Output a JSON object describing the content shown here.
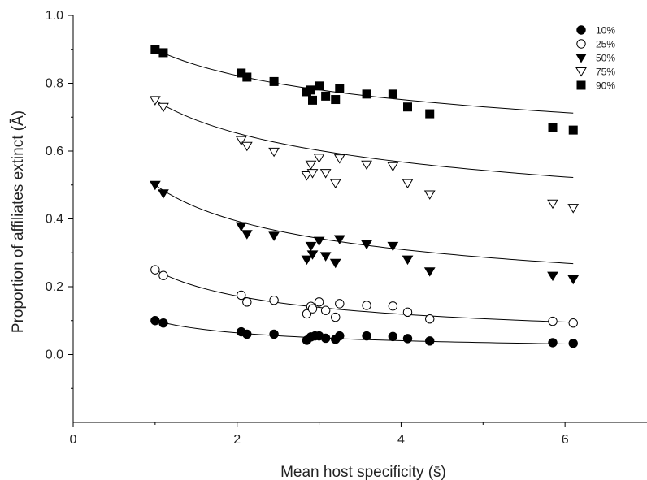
{
  "chart_data": {
    "type": "scatter",
    "xlabel": "Mean host specificity (s̄)",
    "ylabel": "Proportion of affiliates extinct (Ā)",
    "xlim": [
      0,
      7
    ],
    "ylim": [
      -0.2,
      1.0
    ],
    "xticks": [
      "0",
      "2",
      "4",
      "6"
    ],
    "yticks": [
      "0.0",
      "0.2",
      "0.4",
      "0.6",
      "0.8",
      "1.0"
    ],
    "grid": false,
    "legend_position": "top-right",
    "series": [
      {
        "name": "10%",
        "marker": "filled-circle",
        "x": [
          1.0,
          1.1,
          2.05,
          2.12,
          2.45,
          2.85,
          2.9,
          2.95,
          3.0,
          3.08,
          3.2,
          3.25,
          3.58,
          3.9,
          4.08,
          4.35,
          5.85,
          6.1
        ],
        "y": [
          0.1,
          0.093,
          0.067,
          0.06,
          0.06,
          0.042,
          0.052,
          0.055,
          0.055,
          0.048,
          0.045,
          0.055,
          0.055,
          0.053,
          0.047,
          0.04,
          0.035,
          0.033
        ],
        "curve": {
          "x": [
            1.0,
            6.1
          ],
          "y": [
            0.1,
            0.031
          ]
        }
      },
      {
        "name": "25%",
        "marker": "open-circle",
        "x": [
          1.0,
          1.1,
          2.05,
          2.12,
          2.45,
          2.85,
          2.9,
          2.92,
          3.0,
          3.08,
          3.2,
          3.25,
          3.58,
          3.9,
          4.08,
          4.35,
          5.85,
          6.1
        ],
        "y": [
          0.25,
          0.233,
          0.175,
          0.155,
          0.16,
          0.12,
          0.142,
          0.135,
          0.155,
          0.13,
          0.11,
          0.15,
          0.145,
          0.143,
          0.125,
          0.105,
          0.098,
          0.093
        ],
        "curve": {
          "x": [
            1.0,
            6.1
          ],
          "y": [
            0.25,
            0.095
          ]
        }
      },
      {
        "name": "50%",
        "marker": "filled-triangle-down",
        "x": [
          1.0,
          1.1,
          2.05,
          2.12,
          2.45,
          2.85,
          2.9,
          2.92,
          3.0,
          3.08,
          3.2,
          3.25,
          3.58,
          3.9,
          4.08,
          4.35,
          5.85,
          6.1
        ],
        "y": [
          0.5,
          0.475,
          0.378,
          0.355,
          0.35,
          0.28,
          0.32,
          0.295,
          0.335,
          0.29,
          0.27,
          0.34,
          0.325,
          0.32,
          0.28,
          0.245,
          0.232,
          0.222
        ],
        "curve": {
          "x": [
            1.0,
            6.1
          ],
          "y": [
            0.5,
            0.268
          ]
        }
      },
      {
        "name": "75%",
        "marker": "open-triangle-down",
        "x": [
          1.0,
          1.1,
          2.05,
          2.12,
          2.45,
          2.85,
          2.9,
          2.92,
          3.0,
          3.08,
          3.2,
          3.25,
          3.58,
          3.9,
          4.08,
          4.35,
          5.85,
          6.1
        ],
        "y": [
          0.75,
          0.73,
          0.632,
          0.615,
          0.598,
          0.528,
          0.56,
          0.535,
          0.58,
          0.535,
          0.505,
          0.578,
          0.56,
          0.555,
          0.505,
          0.472,
          0.445,
          0.432
        ],
        "curve": {
          "x": [
            1.0,
            6.1
          ],
          "y": [
            0.75,
            0.522
          ]
        }
      },
      {
        "name": "90%",
        "marker": "filled-square",
        "x": [
          1.0,
          1.1,
          2.05,
          2.12,
          2.45,
          2.85,
          2.9,
          2.92,
          3.0,
          3.08,
          3.2,
          3.25,
          3.58,
          3.9,
          4.08,
          4.35,
          5.85,
          6.1
        ],
        "y": [
          0.9,
          0.89,
          0.83,
          0.818,
          0.805,
          0.775,
          0.78,
          0.75,
          0.792,
          0.762,
          0.752,
          0.785,
          0.768,
          0.768,
          0.73,
          0.71,
          0.67,
          0.662
        ],
        "curve": {
          "x": [
            1.0,
            6.1
          ],
          "y": [
            0.9,
            0.712
          ]
        }
      }
    ]
  }
}
